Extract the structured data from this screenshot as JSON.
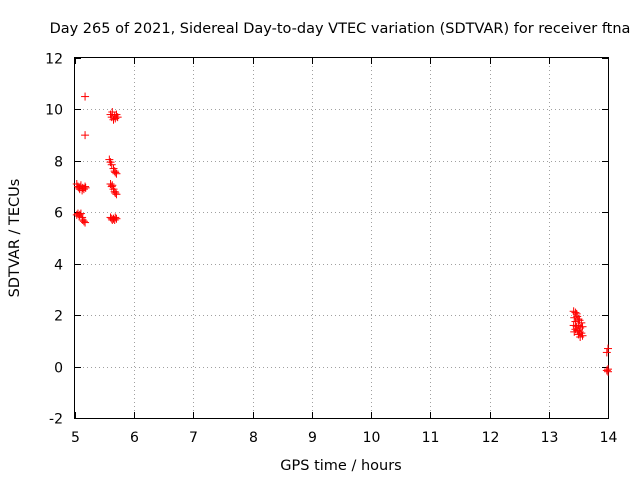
{
  "chart_data": {
    "type": "scatter",
    "title": "Day 265 of 2021, Sidereal Day-to-day VTEC variation (SDTVAR) for receiver ftna",
    "xlabel": "GPS time / hours",
    "ylabel": "SDTVAR / TECUs",
    "xlim": [
      5,
      14
    ],
    "ylim": [
      -2,
      12
    ],
    "xticks": [
      "5",
      "6",
      "7",
      "8",
      "9",
      "10",
      "11",
      "12",
      "13",
      "14"
    ],
    "yticks": [
      "-2",
      "0",
      "2",
      "4",
      "6",
      "8",
      "10",
      "12"
    ],
    "grid": true,
    "marker": "+",
    "series": [
      {
        "name": "SDTVAR",
        "color": "#ff0000",
        "points": [
          [
            5.17,
            10.5
          ],
          [
            5.17,
            9.0
          ],
          [
            5.03,
            7.1
          ],
          [
            5.05,
            7.0
          ],
          [
            5.07,
            6.95
          ],
          [
            5.08,
            6.9
          ],
          [
            5.1,
            7.05
          ],
          [
            5.12,
            6.85
          ],
          [
            5.13,
            6.95
          ],
          [
            5.15,
            6.9
          ],
          [
            5.17,
            7.0
          ],
          [
            5.18,
            6.95
          ],
          [
            5.03,
            5.9
          ],
          [
            5.05,
            5.95
          ],
          [
            5.07,
            5.85
          ],
          [
            5.08,
            5.9
          ],
          [
            5.1,
            5.95
          ],
          [
            5.12,
            5.8
          ],
          [
            5.13,
            5.7
          ],
          [
            5.15,
            5.65
          ],
          [
            5.17,
            5.6
          ],
          [
            5.6,
            9.8
          ],
          [
            5.62,
            9.7
          ],
          [
            5.63,
            9.9
          ],
          [
            5.65,
            9.6
          ],
          [
            5.67,
            9.75
          ],
          [
            5.68,
            9.65
          ],
          [
            5.7,
            9.8
          ],
          [
            5.72,
            9.7
          ],
          [
            5.58,
            8.05
          ],
          [
            5.6,
            7.95
          ],
          [
            5.62,
            7.85
          ],
          [
            5.65,
            7.7
          ],
          [
            5.67,
            7.6
          ],
          [
            5.68,
            7.55
          ],
          [
            5.7,
            7.5
          ],
          [
            5.6,
            7.1
          ],
          [
            5.62,
            7.0
          ],
          [
            5.63,
            7.05
          ],
          [
            5.65,
            6.9
          ],
          [
            5.67,
            6.8
          ],
          [
            5.68,
            6.75
          ],
          [
            5.7,
            6.7
          ],
          [
            5.6,
            5.8
          ],
          [
            5.62,
            5.75
          ],
          [
            5.63,
            5.7
          ],
          [
            5.65,
            5.75
          ],
          [
            5.67,
            5.7
          ],
          [
            5.68,
            5.8
          ],
          [
            5.7,
            5.75
          ],
          [
            13.42,
            2.15
          ],
          [
            13.45,
            2.1
          ],
          [
            13.47,
            2.05
          ],
          [
            13.43,
            1.9
          ],
          [
            13.48,
            1.95
          ],
          [
            13.5,
            1.85
          ],
          [
            13.45,
            1.75
          ],
          [
            13.52,
            1.8
          ],
          [
            13.55,
            1.7
          ],
          [
            13.42,
            1.6
          ],
          [
            13.47,
            1.55
          ],
          [
            13.5,
            1.6
          ],
          [
            13.53,
            1.5
          ],
          [
            13.57,
            1.55
          ],
          [
            13.45,
            1.45
          ],
          [
            13.48,
            1.4
          ],
          [
            13.52,
            1.35
          ],
          [
            13.55,
            1.3
          ],
          [
            13.43,
            1.35
          ],
          [
            13.5,
            1.25
          ],
          [
            13.57,
            1.2
          ],
          [
            13.53,
            1.15
          ],
          [
            14.0,
            0.7
          ],
          [
            13.98,
            0.55
          ],
          [
            14.0,
            -0.1
          ],
          [
            13.98,
            -0.15
          ],
          [
            14.0,
            -0.2
          ]
        ]
      }
    ]
  }
}
